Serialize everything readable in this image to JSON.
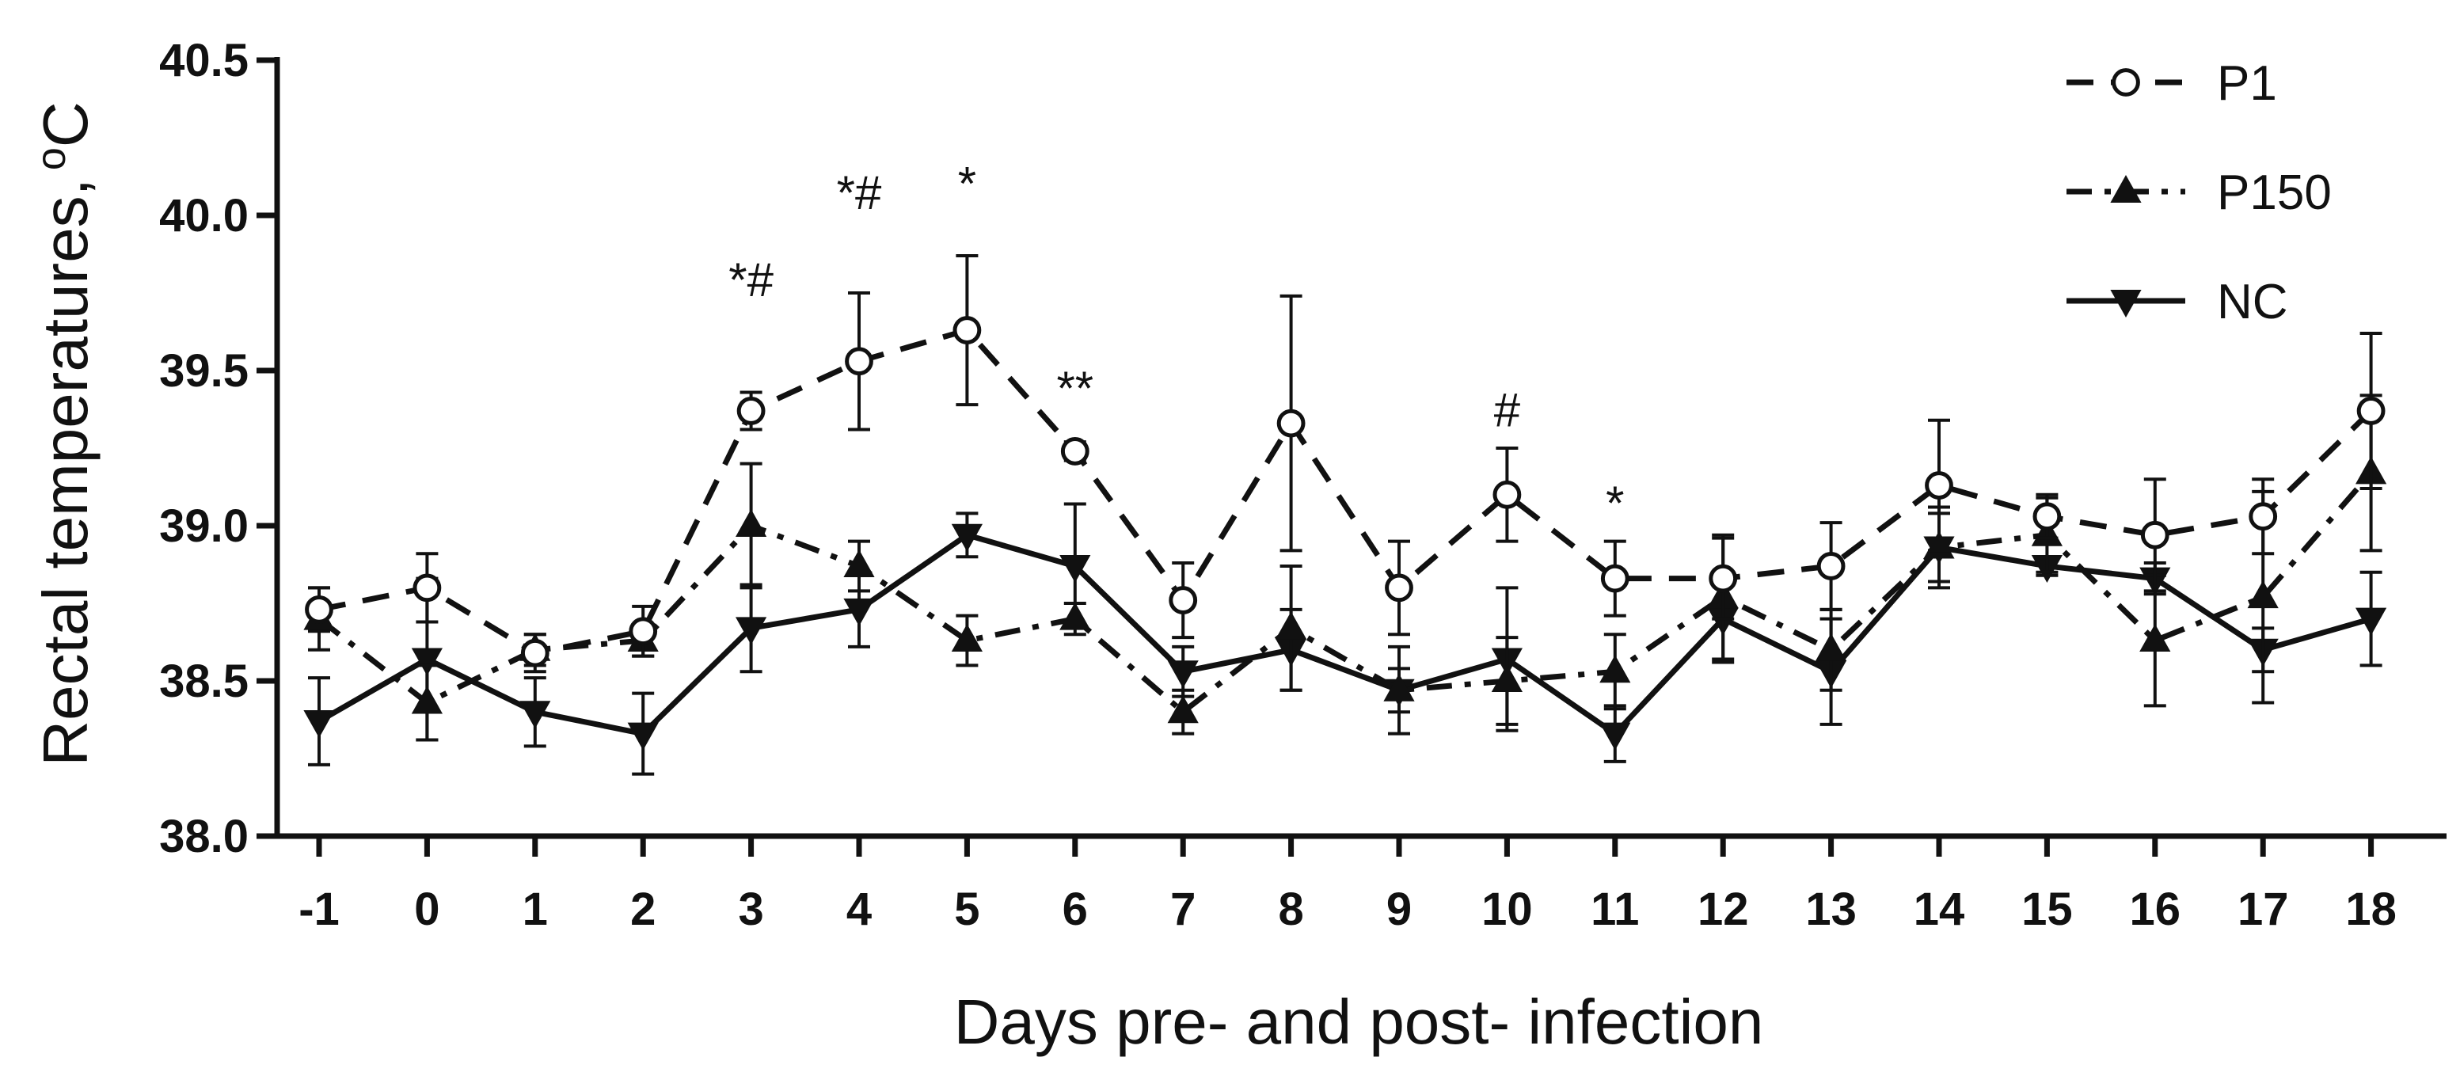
{
  "chart_data": {
    "type": "line",
    "title": "",
    "xlabel": "Days pre- and post- infection",
    "ylabel_main": "Rectal temperatures,",
    "ylabel_unit_sup": "o",
    "ylabel_unit": "C",
    "x": [
      -1,
      0,
      1,
      2,
      3,
      4,
      5,
      6,
      7,
      8,
      9,
      10,
      11,
      12,
      13,
      14,
      15,
      16,
      17,
      18
    ],
    "x_tick_labels": [
      "-1",
      "0",
      "1",
      "2",
      "3",
      "4",
      "5",
      "6",
      "7",
      "8",
      "9",
      "10",
      "11",
      "12",
      "13",
      "14",
      "15",
      "16",
      "17",
      "18"
    ],
    "ylim": [
      38.0,
      40.5
    ],
    "y_ticks": [
      38.0,
      38.5,
      39.0,
      39.5,
      40.0,
      40.5
    ],
    "y_tick_labels": [
      "38.0",
      "38.5",
      "39.0",
      "39.5",
      "40.0",
      "40.5"
    ],
    "legend_position": "top-right",
    "grid": false,
    "series": [
      {
        "name": "P1",
        "line_style": "dashed",
        "marker": "open-circle",
        "values": [
          38.73,
          38.8,
          38.59,
          38.66,
          39.37,
          39.53,
          39.63,
          39.24,
          38.76,
          39.33,
          38.8,
          39.1,
          38.83,
          38.83,
          38.87,
          39.13,
          39.03,
          38.97,
          39.03,
          39.37
        ],
        "errors": [
          0.07,
          0.11,
          0.06,
          0.08,
          0.06,
          0.22,
          0.24,
          0.03,
          0.12,
          0.41,
          0.15,
          0.15,
          0.12,
          0.13,
          0.14,
          0.21,
          0.07,
          0.18,
          0.12,
          0.25
        ]
      },
      {
        "name": "P150",
        "line_style": "dash-dot",
        "marker": "triangle-up",
        "values": [
          38.7,
          38.43,
          38.6,
          38.63,
          39.0,
          38.87,
          38.63,
          38.7,
          38.4,
          38.67,
          38.47,
          38.5,
          38.53,
          38.77,
          38.6,
          38.93,
          38.97,
          38.63,
          38.77,
          39.17
        ],
        "errors": [
          0.1,
          0.12,
          0.05,
          0.05,
          0.2,
          0.08,
          0.08,
          0.05,
          0.07,
          0.2,
          0.14,
          0.14,
          0.12,
          0.2,
          0.13,
          0.11,
          0.12,
          0.21,
          0.34,
          0.25
        ]
      },
      {
        "name": "NC",
        "line_style": "solid",
        "marker": "triangle-down",
        "values": [
          38.37,
          38.57,
          38.4,
          38.33,
          38.67,
          38.73,
          38.97,
          38.87,
          38.53,
          38.6,
          38.47,
          38.57,
          38.33,
          38.7,
          38.53,
          38.93,
          38.87,
          38.83,
          38.6,
          38.7
        ],
        "errors": [
          0.14,
          0.26,
          0.11,
          0.13,
          0.14,
          0.12,
          0.07,
          0.2,
          0.08,
          0.13,
          0.07,
          0.23,
          0.09,
          0.14,
          0.17,
          0.13,
          0.03,
          0.05,
          0.07,
          0.15
        ]
      }
    ],
    "annotations": [
      {
        "x": 3,
        "y": 39.74,
        "text": "*#"
      },
      {
        "x": 4,
        "y": 40.02,
        "text": "*#"
      },
      {
        "x": 5,
        "y": 40.05,
        "text": "*"
      },
      {
        "x": 6,
        "y": 39.39,
        "text": "**"
      },
      {
        "x": 10,
        "y": 39.32,
        "text": "#"
      },
      {
        "x": 11,
        "y": 39.02,
        "text": "*"
      }
    ]
  }
}
